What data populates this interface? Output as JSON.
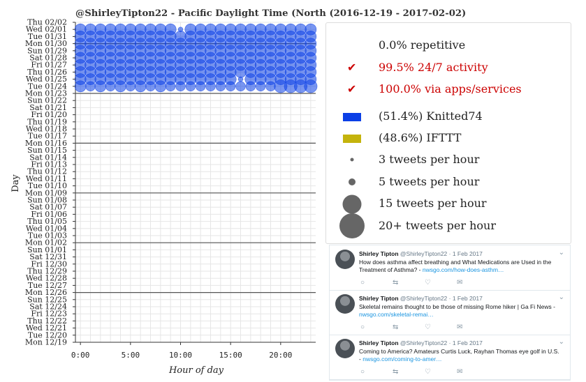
{
  "chart_data": {
    "type": "scatter",
    "title": "@ShirleyTipton22 - Pacific Daylight Time (North",
    "title_range": "(2016-12-19 - 2017-02-02)",
    "xlabel": "Hour of day",
    "ylabel": "Day",
    "x_ticks": [
      {
        "hour": 0,
        "label": "0:00"
      },
      {
        "hour": 5,
        "label": "5:00"
      },
      {
        "hour": 10,
        "label": "10:00"
      },
      {
        "hour": 15,
        "label": "15:00"
      },
      {
        "hour": 20,
        "label": "20:00"
      }
    ],
    "xlim": [
      -0.5,
      23.5
    ],
    "days": [
      "Mon 12/19",
      "Tue 12/20",
      "Wed 12/21",
      "Thu 12/22",
      "Fri 12/23",
      "Sat 12/24",
      "Sun 12/25",
      "Mon 12/26",
      "Tue 12/27",
      "Wed 12/28",
      "Thu 12/29",
      "Fri 12/30",
      "Sat 12/31",
      "Sun 01/01",
      "Mon 01/02",
      "Tue 01/03",
      "Wed 01/04",
      "Thu 01/05",
      "Fri 01/06",
      "Sat 01/07",
      "Sun 01/08",
      "Mon 01/09",
      "Tue 01/10",
      "Wed 01/11",
      "Thu 01/12",
      "Fri 01/13",
      "Sat 01/14",
      "Sun 01/15",
      "Mon 01/16",
      "Tue 01/17",
      "Wed 01/18",
      "Thu 01/19",
      "Fri 01/20",
      "Sat 01/21",
      "Sun 01/22",
      "Mon 01/23",
      "Tue 01/24",
      "Wed 01/25",
      "Thu 01/26",
      "Fri 01/27",
      "Sat 01/28",
      "Sun 01/29",
      "Mon 01/30",
      "Tue 01/31",
      "Wed 02/01",
      "Thu 02/02"
    ],
    "week_separators": [
      "Mon 12/26",
      "Mon 01/02",
      "Mon 01/09",
      "Mon 01/16",
      "Mon 01/23",
      "Mon 01/30"
    ],
    "grid": true,
    "series": [
      {
        "name": "Knitted74",
        "color": "#0b3fe6",
        "note": "tweets per hour; one row per day from Tue 01/24 to Wed 02/01, columns = hours 0..23",
        "start_day": "Tue 01/24",
        "counts": [
          [
            15,
            12,
            15,
            12,
            15,
            12,
            15,
            12,
            15,
            12,
            12,
            12,
            12,
            12,
            12,
            12,
            12,
            12,
            12,
            12,
            18,
            18,
            18,
            18
          ],
          [
            15,
            15,
            15,
            15,
            15,
            15,
            15,
            15,
            15,
            15,
            15,
            15,
            15,
            15,
            15,
            15,
            3,
            15,
            15,
            15,
            15,
            15,
            15,
            15
          ],
          [
            15,
            15,
            15,
            15,
            15,
            15,
            15,
            15,
            15,
            15,
            15,
            15,
            15,
            15,
            15,
            15,
            15,
            15,
            15,
            15,
            15,
            15,
            15,
            15
          ],
          [
            15,
            15,
            15,
            15,
            15,
            15,
            15,
            15,
            15,
            15,
            15,
            15,
            15,
            15,
            15,
            15,
            15,
            15,
            15,
            15,
            15,
            15,
            15,
            15
          ],
          [
            15,
            15,
            15,
            15,
            15,
            15,
            15,
            15,
            15,
            15,
            15,
            15,
            15,
            15,
            15,
            15,
            15,
            15,
            15,
            15,
            15,
            15,
            15,
            15
          ],
          [
            15,
            15,
            15,
            15,
            15,
            15,
            15,
            15,
            15,
            15,
            15,
            15,
            15,
            15,
            15,
            15,
            15,
            15,
            15,
            15,
            15,
            15,
            15,
            15
          ],
          [
            15,
            15,
            15,
            15,
            15,
            15,
            15,
            15,
            15,
            15,
            15,
            15,
            15,
            15,
            15,
            15,
            15,
            15,
            15,
            15,
            15,
            15,
            15,
            15
          ],
          [
            15,
            15,
            15,
            15,
            15,
            15,
            15,
            15,
            15,
            15,
            15,
            15,
            15,
            15,
            15,
            15,
            15,
            15,
            15,
            15,
            15,
            15,
            15,
            15
          ],
          [
            15,
            15,
            15,
            15,
            15,
            15,
            15,
            15,
            15,
            15,
            3,
            15,
            15,
            15,
            15,
            15,
            15,
            15,
            15,
            15,
            15,
            15,
            15,
            15
          ]
        ]
      }
    ]
  },
  "legend": {
    "stats": [
      {
        "check": "",
        "text": "0.0% repetitive",
        "highlight": false
      },
      {
        "check": "✔",
        "text": "99.5% 24/7 activity",
        "highlight": true
      },
      {
        "check": "✔",
        "text": "100.0% via apps/services",
        "highlight": true
      }
    ],
    "sources": [
      {
        "label": "(51.4%) Knitted74",
        "color": "#0b3fe6"
      },
      {
        "label": "(48.6%) IFTTT",
        "color": "#c4b30c"
      }
    ],
    "sizes": [
      {
        "label": "3 tweets per hour",
        "tweets": 3
      },
      {
        "label": "5 tweets per hour",
        "tweets": 5
      },
      {
        "label": "15 tweets per hour",
        "tweets": 15
      },
      {
        "label": "20+ tweets per hour",
        "tweets": 20
      }
    ],
    "marker_color": "#666666"
  },
  "tweets": [
    {
      "name": "Shirley Tipton",
      "handle": "@ShirleyTipton22",
      "date": "· 1 Feb 2017",
      "text": "How does asthma affect breathing and What Medications are Used in the Treatment of Asthma? -",
      "link": "nwsgo.com/how-does-asthm…"
    },
    {
      "name": "Shirley Tipton",
      "handle": "@ShirleyTipton22",
      "date": "· 1 Feb 2017",
      "text": "Skeletal remains thought to be those of missing Rome hiker | Ga Fi News -",
      "link": "nwsgo.com/skeletal-remai…"
    },
    {
      "name": "Shirley Tipton",
      "handle": "@ShirleyTipton22",
      "date": "· 1 Feb 2017",
      "text": "Coming to America? Amateurs Curtis Luck, Rayhan Thomas eye golf in U.S. -",
      "link": "nwsgo.com/coming-to-amer…"
    }
  ]
}
